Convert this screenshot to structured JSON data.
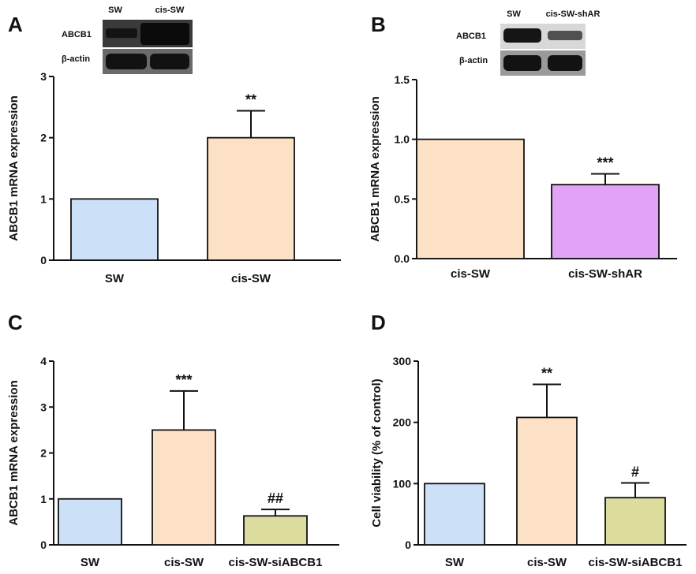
{
  "figure_panels": [
    "A",
    "B",
    "C",
    "D"
  ],
  "blots": [
    {
      "panel": "A",
      "lanes": [
        "SW",
        "cis-SW"
      ],
      "rows": [
        "ABCB1",
        "β-actin"
      ]
    },
    {
      "panel": "B",
      "lanes": [
        "SW",
        "cis-SW-shAR"
      ],
      "rows": [
        "ABCB1",
        "β-actin"
      ]
    }
  ],
  "chart_data": [
    {
      "panel": "A",
      "type": "bar",
      "title": "",
      "categories": [
        "SW",
        "cis-SW"
      ],
      "values": [
        1.0,
        2.0
      ],
      "errors": [
        0,
        0.44
      ],
      "colors": [
        "#cce0f7",
        "#fde1c6"
      ],
      "annotations": [
        "",
        "**"
      ],
      "xlabel": "",
      "ylabel": "ABCB1 mRNA expression",
      "ylim": [
        0,
        3
      ],
      "yticks": [
        "0",
        "1",
        "2",
        "3"
      ]
    },
    {
      "panel": "B",
      "type": "bar",
      "title": "",
      "categories": [
        "cis-SW",
        "cis-SW-shAR"
      ],
      "values": [
        1.0,
        0.62
      ],
      "errors": [
        0,
        0.09
      ],
      "colors": [
        "#fde1c6",
        "#e2a2f5"
      ],
      "annotations": [
        "",
        "***"
      ],
      "xlabel": "",
      "ylabel": "ABCB1 mRNA expression",
      "ylim": [
        0,
        1.5
      ],
      "yticks": [
        "0.0",
        "0.5",
        "1.0",
        "1.5"
      ]
    },
    {
      "panel": "C",
      "type": "bar",
      "title": "",
      "categories": [
        "SW",
        "cis-SW",
        "cis-SW-siABCB1"
      ],
      "values": [
        1.0,
        2.5,
        0.63
      ],
      "errors": [
        0,
        0.85,
        0.14
      ],
      "colors": [
        "#cce0f7",
        "#fde1c6",
        "#dcdc9f"
      ],
      "annotations": [
        "",
        "***",
        "##"
      ],
      "xlabel": "",
      "ylabel": "ABCB1 mRNA expression",
      "ylim": [
        0,
        4
      ],
      "yticks": [
        "0",
        "1",
        "2",
        "3",
        "4"
      ]
    },
    {
      "panel": "D",
      "type": "bar",
      "title": "",
      "categories": [
        "SW",
        "cis-SW",
        "cis-SW-siABCB1"
      ],
      "values": [
        100,
        208,
        77
      ],
      "errors": [
        0,
        54,
        24
      ],
      "colors": [
        "#cce0f7",
        "#fde1c6",
        "#dcdc9f"
      ],
      "annotations": [
        "",
        "**",
        "#"
      ],
      "xlabel": "",
      "ylabel": "Cell viability (% of control)",
      "ylim": [
        0,
        300
      ],
      "yticks": [
        "0",
        "100",
        "200",
        "300"
      ]
    }
  ]
}
